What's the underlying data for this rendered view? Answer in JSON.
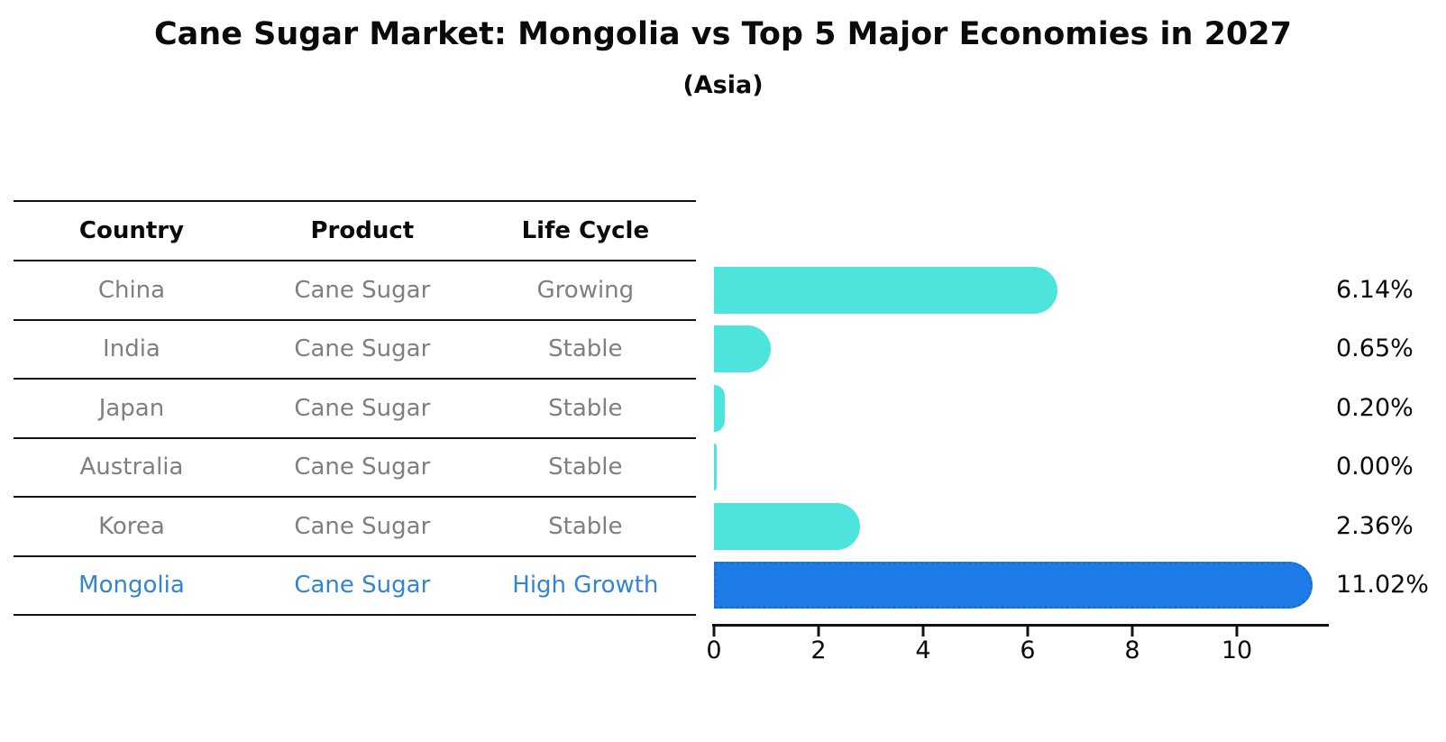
{
  "title": "Cane Sugar Market: Mongolia vs Top 5 Major Economies in 2027",
  "subtitle": "(Asia)",
  "table": {
    "headers": [
      "Country",
      "Product",
      "Life Cycle"
    ],
    "rows": [
      {
        "country": "China",
        "product": "Cane Sugar",
        "life_cycle": "Growing",
        "highlight": false
      },
      {
        "country": "India",
        "product": "Cane Sugar",
        "life_cycle": "Stable",
        "highlight": false
      },
      {
        "country": "Japan",
        "product": "Cane Sugar",
        "life_cycle": "Stable",
        "highlight": false
      },
      {
        "country": "Australia",
        "product": "Cane Sugar",
        "life_cycle": "Stable",
        "highlight": false
      },
      {
        "country": "Korea",
        "product": "Cane Sugar",
        "life_cycle": "Stable",
        "highlight": false
      },
      {
        "country": "Mongolia",
        "product": "Cane Sugar",
        "life_cycle": "High Growth",
        "highlight": true
      }
    ]
  },
  "chart_data": {
    "type": "bar",
    "orientation": "horizontal",
    "categories": [
      "China",
      "India",
      "Japan",
      "Australia",
      "Korea",
      "Mongolia"
    ],
    "values": [
      6.14,
      0.65,
      0.2,
      0.0,
      2.36,
      11.02
    ],
    "value_labels": [
      "6.14%",
      "0.65%",
      "0.20%",
      "0.00%",
      "2.36%",
      "11.02%"
    ],
    "x_ticks": [
      "0",
      "2",
      "4",
      "6",
      "8",
      "10"
    ],
    "x_tick_values": [
      0,
      2,
      4,
      6,
      8,
      10
    ],
    "xlim": [
      0,
      11.75
    ],
    "grid": false,
    "legend": false,
    "bar_color": "#4de4de",
    "highlight_bar_color": "#1e7ce8",
    "highlight_bar_edge_color": "#1a6fd0",
    "highlight_text_color": "#3584d2",
    "row_text_color": "#7f7f7f",
    "highlight_index": 5
  }
}
